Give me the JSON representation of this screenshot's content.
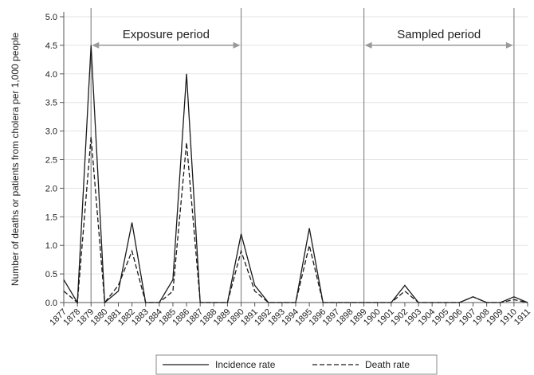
{
  "chart_data": {
    "type": "line",
    "ylabel": "Number of deaths or patients from cholera per 1,000 people",
    "xlabel": "",
    "ylim": [
      0,
      5
    ],
    "yticks": [
      "0.0",
      "0.5",
      "1.0",
      "1.5",
      "2.0",
      "2.5",
      "3.0",
      "3.5",
      "4.0",
      "4.5",
      "5.0"
    ],
    "grid": true,
    "x": [
      "1877",
      "1878",
      "1879",
      "1880",
      "1881",
      "1882",
      "1883",
      "1884",
      "1885",
      "1886",
      "1887",
      "1888",
      "1889",
      "1890",
      "1891",
      "1892",
      "1893",
      "1894",
      "1895",
      "1896",
      "1897",
      "1898",
      "1899",
      "1900",
      "1901",
      "1902",
      "1903",
      "1904",
      "1905",
      "1906",
      "1907",
      "1908",
      "1909",
      "1910",
      "1911"
    ],
    "series": [
      {
        "name": "Incidence rate",
        "style": "solid",
        "values": [
          0.4,
          0.0,
          4.5,
          0.0,
          0.2,
          1.4,
          0.0,
          0.0,
          0.4,
          4.0,
          0.0,
          0.0,
          0.0,
          1.2,
          0.3,
          0.0,
          0.0,
          0.0,
          1.3,
          0.0,
          0.0,
          0.0,
          0.0,
          0.0,
          0.0,
          0.3,
          0.0,
          0.0,
          0.0,
          0.0,
          0.1,
          0.0,
          0.0,
          0.1,
          0.0
        ]
      },
      {
        "name": "Death rate",
        "style": "dashed",
        "values": [
          0.2,
          0.0,
          2.9,
          0.0,
          0.3,
          0.9,
          0.0,
          0.0,
          0.2,
          2.8,
          0.0,
          0.0,
          0.0,
          0.9,
          0.2,
          0.0,
          0.0,
          0.0,
          1.0,
          0.0,
          0.0,
          0.0,
          0.0,
          0.0,
          0.0,
          0.2,
          0.0,
          0.0,
          0.0,
          0.0,
          0.1,
          0.0,
          0.0,
          0.05,
          0.0
        ]
      }
    ],
    "vertical_lines": [
      "1879",
      "1890",
      "1899",
      "1910"
    ],
    "periods": [
      {
        "label": "Exposure period",
        "start": "1879",
        "end": "1890"
      },
      {
        "label": "Sampled period",
        "start": "1899",
        "end": "1910"
      }
    ],
    "legend": {
      "position": "bottom",
      "entries": [
        "Incidence rate",
        "Death rate"
      ]
    },
    "colors": {
      "line": "#1a1a1a",
      "grid": "#e3e3e3",
      "axis": "#555555",
      "period_arrow": "#999999",
      "vline": "#8a8a8a"
    }
  }
}
